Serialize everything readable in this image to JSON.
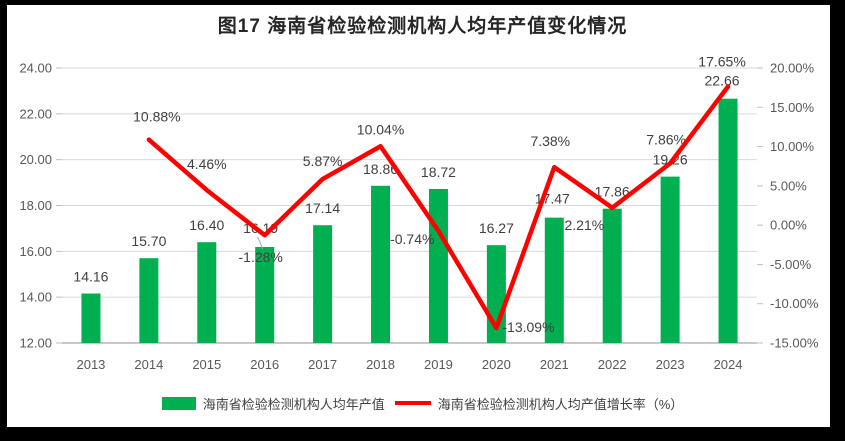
{
  "title": "图17  海南省检验检测机构人均年产值变化情况",
  "legend": [
    {
      "label": "海南省检验检测机构人均年产值",
      "swatch": "bar",
      "color": "#00B050"
    },
    {
      "label": "海南省检验检测机构人均产值增长率（%）",
      "swatch": "line",
      "color": "#FF0000"
    }
  ],
  "chart_data": {
    "type": "combo-bar-line",
    "title": "图17  海南省检验检测机构人均年产值变化情况",
    "categories": [
      "2013",
      "2014",
      "2015",
      "2016",
      "2017",
      "2018",
      "2019",
      "2020",
      "2021",
      "2022",
      "2023",
      "2024"
    ],
    "series": [
      {
        "name": "海南省检验检测机构人均年产值",
        "type": "bar",
        "axis": "left",
        "color": "#00B050",
        "values": [
          14.16,
          15.7,
          16.4,
          16.19,
          17.14,
          18.86,
          18.72,
          16.27,
          17.47,
          17.86,
          19.26,
          22.66
        ],
        "labels": [
          "14.16",
          "15.70",
          "16.40",
          "16.19",
          "17.14",
          "18.86",
          "18.72",
          "16.27",
          "17.47",
          "17.86",
          "19.26",
          "22.66"
        ],
        "label_offsets": [
          {
            "dx": 0,
            "dy": -12
          },
          {
            "dx": 0,
            "dy": -12
          },
          {
            "dx": 0,
            "dy": -12
          },
          {
            "dx": -4,
            "dy": -14,
            "leader": true
          },
          {
            "dx": 0,
            "dy": -12
          },
          {
            "dx": 0,
            "dy": -12
          },
          {
            "dx": 0,
            "dy": -12
          },
          {
            "dx": 0,
            "dy": -12
          },
          {
            "dx": -2,
            "dy": -14
          },
          {
            "dx": 0,
            "dy": -12
          },
          {
            "dx": 0,
            "dy": -12
          },
          {
            "dx": -6,
            "dy": -13
          }
        ]
      },
      {
        "name": "海南省检验检测机构人均产值增长率（%）",
        "type": "line",
        "axis": "right",
        "color": "#FF0000",
        "values": [
          null,
          10.88,
          4.46,
          -1.28,
          5.87,
          10.04,
          -0.74,
          -13.09,
          7.38,
          2.21,
          7.86,
          17.65
        ],
        "labels": [
          "",
          "10.88%",
          "4.46%",
          "-1.28%",
          "5.87%",
          "10.04%",
          "-0.74%",
          "-13.09%",
          "7.38%",
          "2.21%",
          "7.86%",
          "17.65%"
        ],
        "label_offsets": [
          null,
          {
            "dx": 8,
            "dy": -18,
            "anchor": "middle"
          },
          {
            "dx": 0,
            "dy": -21,
            "anchor": "middle"
          },
          {
            "dx": -4,
            "dy": 27,
            "anchor": "middle"
          },
          {
            "dx": 0,
            "dy": -13,
            "anchor": "middle"
          },
          {
            "dx": 0,
            "dy": -12,
            "anchor": "middle"
          },
          {
            "dx": -4,
            "dy": 13,
            "anchor": "end"
          },
          {
            "dx": 6,
            "dy": 4,
            "anchor": "start"
          },
          {
            "dx": -4,
            "dy": -21,
            "anchor": "middle"
          },
          {
            "dx": -8,
            "dy": 22,
            "anchor": "end"
          },
          {
            "dx": -4,
            "dy": -19,
            "anchor": "middle"
          },
          {
            "dx": -6,
            "dy": -20,
            "anchor": "middle"
          }
        ]
      }
    ],
    "left_axis": {
      "min": 12,
      "max": 24,
      "step": 2,
      "ticks": [
        "24.00",
        "22.00",
        "20.00",
        "18.00",
        "16.00",
        "14.00",
        "12.00"
      ]
    },
    "right_axis": {
      "min": -15,
      "max": 20,
      "step": 5,
      "ticks": [
        "20.00%",
        "15.00%",
        "10.00%",
        "5.00%",
        "0.00%",
        "-5.00%",
        "-10.00%",
        "-15.00%"
      ]
    },
    "grid": true,
    "legend_position": "bottom"
  },
  "style": {
    "bar_color": "#00B050",
    "line_color": "#FF0000",
    "grid_color": "#D9D9D9",
    "axis_line_color": "#A6A6A6",
    "tick_color": "#BFBFBF",
    "axis_text_color": "#595959",
    "label_text_color": "#404040",
    "leader_color": "#A6A6A6",
    "frame_color": "#000000",
    "background": "#FFFFFF"
  }
}
